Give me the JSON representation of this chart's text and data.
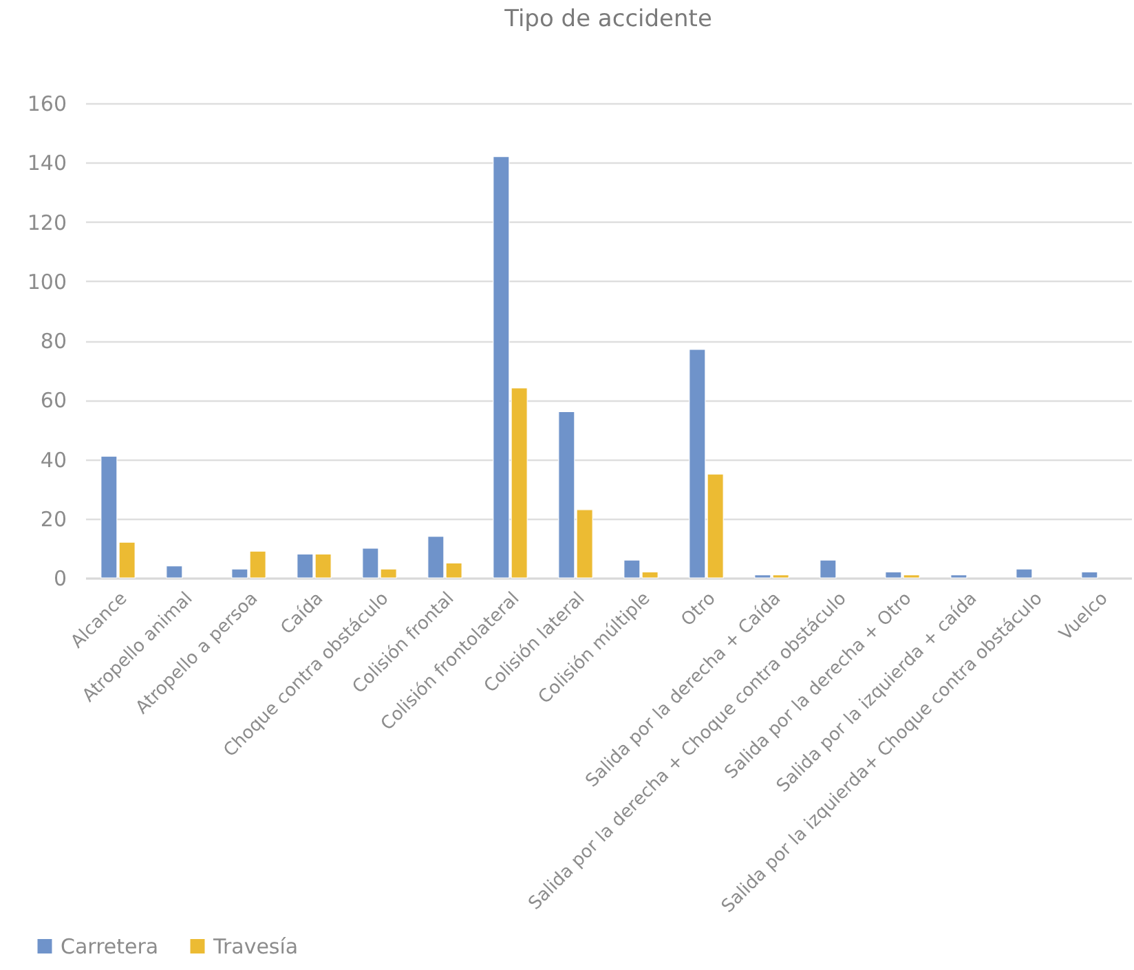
{
  "chart_data": {
    "type": "bar",
    "title": "Tipo de accidente",
    "categories": [
      "Alcance",
      "Atropello animal",
      "Atropello a persoa",
      "Caída",
      "Choque contra obstáculo",
      "Colisión frontal",
      "Colisión frontolateral",
      "Colisión lateral",
      "Colisión múltiple",
      "Otro",
      "Salida por la derecha + Caída",
      "Salida por la derecha + Choque contra obstáculo",
      "Salida por la derecha + Otro",
      "Salida por la izquierda + caída",
      "Salida por la izquierda+ Choque contra obstáculo",
      "Vuelco"
    ],
    "series": [
      {
        "name": "Carretera",
        "color": "#6f93ca",
        "values": [
          41,
          4,
          3,
          8,
          10,
          14,
          142,
          56,
          6,
          77,
          1,
          6,
          2,
          1,
          3,
          2
        ]
      },
      {
        "name": "Travesía",
        "color": "#ecbb33",
        "values": [
          12,
          null,
          9,
          8,
          3,
          5,
          64,
          23,
          2,
          35,
          1,
          null,
          1,
          null,
          null,
          null
        ]
      }
    ],
    "ylim": [
      0,
      160
    ],
    "yticks": [
      0,
      20,
      40,
      60,
      80,
      100,
      120,
      140,
      160
    ],
    "grid": "y",
    "legend": "bottom left"
  }
}
